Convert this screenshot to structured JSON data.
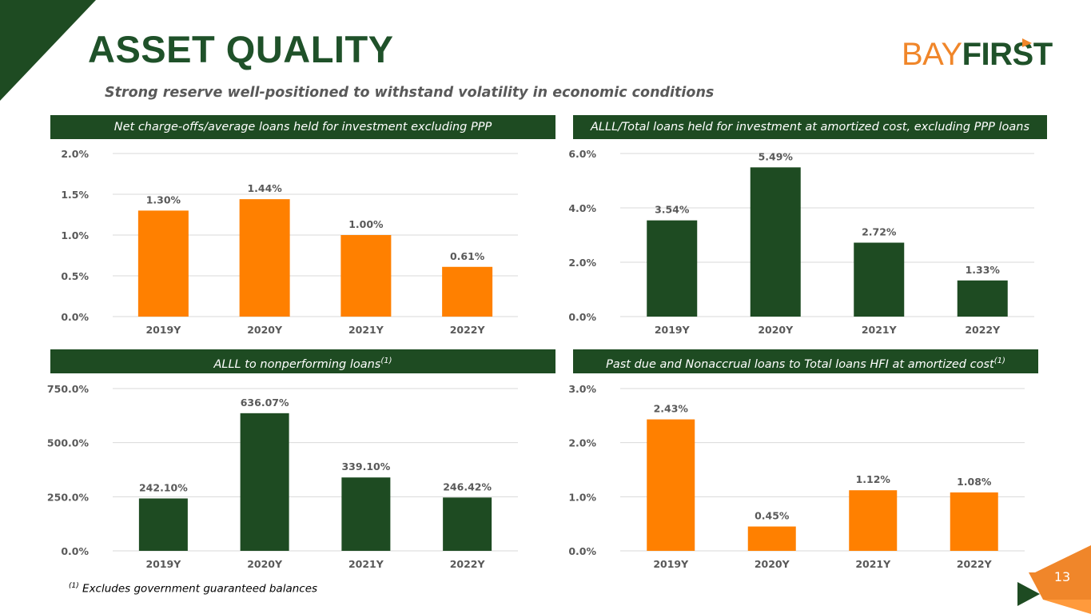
{
  "header": {
    "title": "ASSET QUALITY",
    "subtitle": "Strong reserve well-positioned to withstand volatility in economic conditions"
  },
  "logo": {
    "bay": "BAY",
    "first": "FIRST"
  },
  "banners": {
    "nco": "Net charge-offs/average loans held for investment excluding PPP",
    "alll_total": "ALLL/Total loans held for investment at amortized cost, excluding PPP loans",
    "alll_npl": "ALLL to nonperforming loans",
    "alll_npl_sup": "(1)",
    "past_due": "Past due and Nonaccrual loans to Total loans HFI at amortized cost",
    "past_due_sup": "(1)"
  },
  "footnote": {
    "marker": "(1)",
    "text": " Excludes government guaranteed balances"
  },
  "page": {
    "number": "13"
  },
  "colors": {
    "green": "#1e4b22",
    "orange": "#ff8000",
    "title_green": "#1f5129"
  },
  "chart_data": [
    {
      "id": "nco",
      "type": "bar",
      "categories": [
        "2019Y",
        "2020Y",
        "2021Y",
        "2022Y"
      ],
      "values": [
        1.3,
        1.44,
        1.0,
        0.61
      ],
      "labels": [
        "1.30%",
        "1.44%",
        "1.00%",
        "0.61%"
      ],
      "yticks": [
        "0.0%",
        "0.5%",
        "1.0%",
        "1.5%",
        "2.0%"
      ],
      "ylim": [
        0,
        2.0
      ],
      "color": "#ff8000"
    },
    {
      "id": "alll_total",
      "type": "bar",
      "categories": [
        "2019Y",
        "2020Y",
        "2021Y",
        "2022Y"
      ],
      "values": [
        3.54,
        5.49,
        2.72,
        1.33
      ],
      "labels": [
        "3.54%",
        "5.49%",
        "2.72%",
        "1.33%"
      ],
      "yticks": [
        "0.0%",
        "2.0%",
        "4.0%",
        "6.0%"
      ],
      "ylim": [
        0,
        6.0
      ],
      "color": "#1e4b22"
    },
    {
      "id": "alll_npl",
      "type": "bar",
      "categories": [
        "2019Y",
        "2020Y",
        "2021Y",
        "2022Y"
      ],
      "values": [
        242.1,
        636.07,
        339.1,
        246.42
      ],
      "labels": [
        "242.10%",
        "636.07%",
        "339.10%",
        "246.42%"
      ],
      "yticks": [
        "0.0%",
        "250.0%",
        "500.0%",
        "750.0%"
      ],
      "ylim": [
        0,
        750.0
      ],
      "color": "#1e4b22"
    },
    {
      "id": "past_due",
      "type": "bar",
      "categories": [
        "2019Y",
        "2020Y",
        "2021Y",
        "2022Y"
      ],
      "values": [
        2.43,
        0.45,
        1.12,
        1.08
      ],
      "labels": [
        "2.43%",
        "0.45%",
        "1.12%",
        "1.08%"
      ],
      "yticks": [
        "0.0%",
        "1.0%",
        "2.0%",
        "3.0%"
      ],
      "ylim": [
        0,
        3.0
      ],
      "color": "#ff8000"
    }
  ]
}
